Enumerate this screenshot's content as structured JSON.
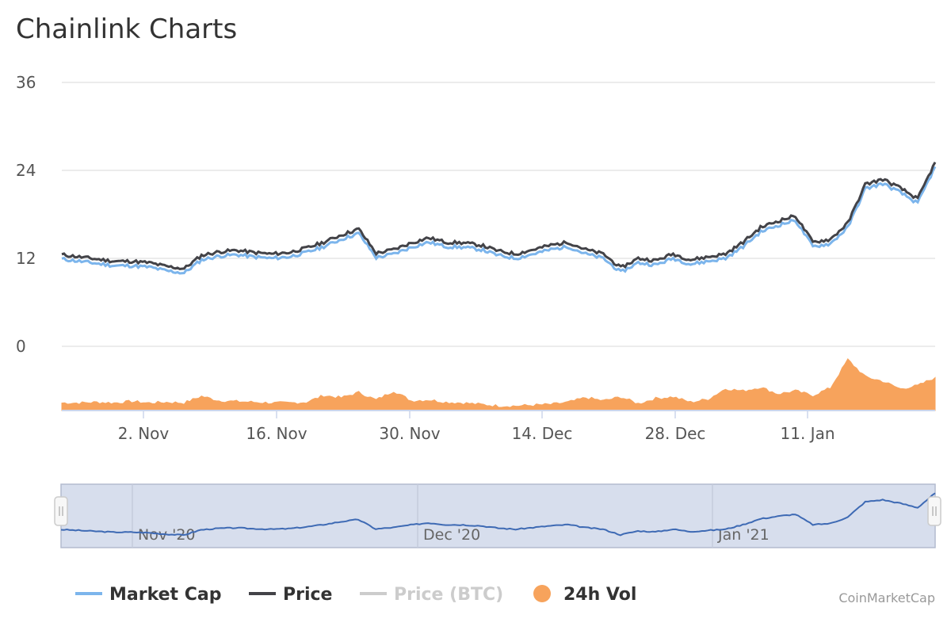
{
  "chart_data": {
    "type": "line",
    "title": "Chainlink Charts",
    "y_ticks": [
      "36",
      "24",
      "12",
      "0"
    ],
    "ylim": [
      0,
      36
    ],
    "x_ticks": [
      "2. Nov",
      "16. Nov",
      "30. Nov",
      "14. Dec",
      "28. Dec",
      "11. Jan"
    ],
    "grid": true,
    "legend_position": "bottom",
    "series": [
      {
        "name": "Market Cap",
        "color": "#7cb5ec",
        "values": [
          11.9,
          11.6,
          11.3,
          11.0,
          11.0,
          10.8,
          10.3,
          10.0,
          11.8,
          12.3,
          12.5,
          12.2,
          12.0,
          12.2,
          12.8,
          13.6,
          14.6,
          15.4,
          12.1,
          12.6,
          13.5,
          14.2,
          13.6,
          13.5,
          13.2,
          12.4,
          12.0,
          12.6,
          13.2,
          13.6,
          12.6,
          12.0,
          10.1,
          11.4,
          11.1,
          12.0,
          11.2,
          11.6,
          12.0,
          13.6,
          15.6,
          16.5,
          17.2,
          13.6,
          14.0,
          16.2,
          21.5,
          22.2,
          21.0,
          19.5,
          24.5
        ]
      },
      {
        "name": "Price",
        "color": "#434348",
        "values": [
          12.5,
          12.2,
          11.9,
          11.6,
          11.6,
          11.4,
          10.9,
          10.6,
          12.4,
          12.9,
          13.1,
          12.8,
          12.6,
          12.8,
          13.4,
          14.2,
          15.2,
          16.0,
          12.7,
          13.2,
          14.1,
          14.8,
          14.2,
          14.1,
          13.8,
          13.0,
          12.6,
          13.2,
          13.8,
          14.2,
          13.2,
          12.6,
          10.7,
          12.0,
          11.7,
          12.6,
          11.8,
          12.2,
          12.6,
          14.2,
          16.2,
          17.1,
          17.8,
          14.2,
          14.6,
          16.8,
          22.1,
          22.8,
          21.6,
          20.1,
          25.1
        ]
      },
      {
        "name": "Price (BTC)",
        "color": "#cccccc",
        "values": []
      },
      {
        "name": "24h Vol",
        "color": "#f7a35c",
        "values": [
          1.0,
          1.0,
          1.1,
          1.0,
          1.2,
          1.0,
          1.1,
          1.0,
          1.9,
          1.3,
          1.2,
          1.1,
          1.0,
          1.0,
          1.1,
          2.0,
          1.7,
          2.4,
          1.4,
          2.6,
          1.3,
          1.4,
          1.1,
          1.0,
          0.8,
          0.6,
          0.6,
          0.7,
          0.8,
          1.1,
          1.7,
          1.3,
          1.8,
          0.9,
          1.6,
          1.8,
          1.1,
          1.5,
          2.9,
          2.6,
          3.1,
          2.2,
          2.6,
          2.0,
          3.0,
          6.8,
          4.5,
          3.9,
          2.9,
          3.3,
          4.4
        ]
      }
    ],
    "navigator_labels": [
      "Nov '20",
      "Dec '20",
      "Jan '21"
    ]
  },
  "credit": "CoinMarketCap"
}
